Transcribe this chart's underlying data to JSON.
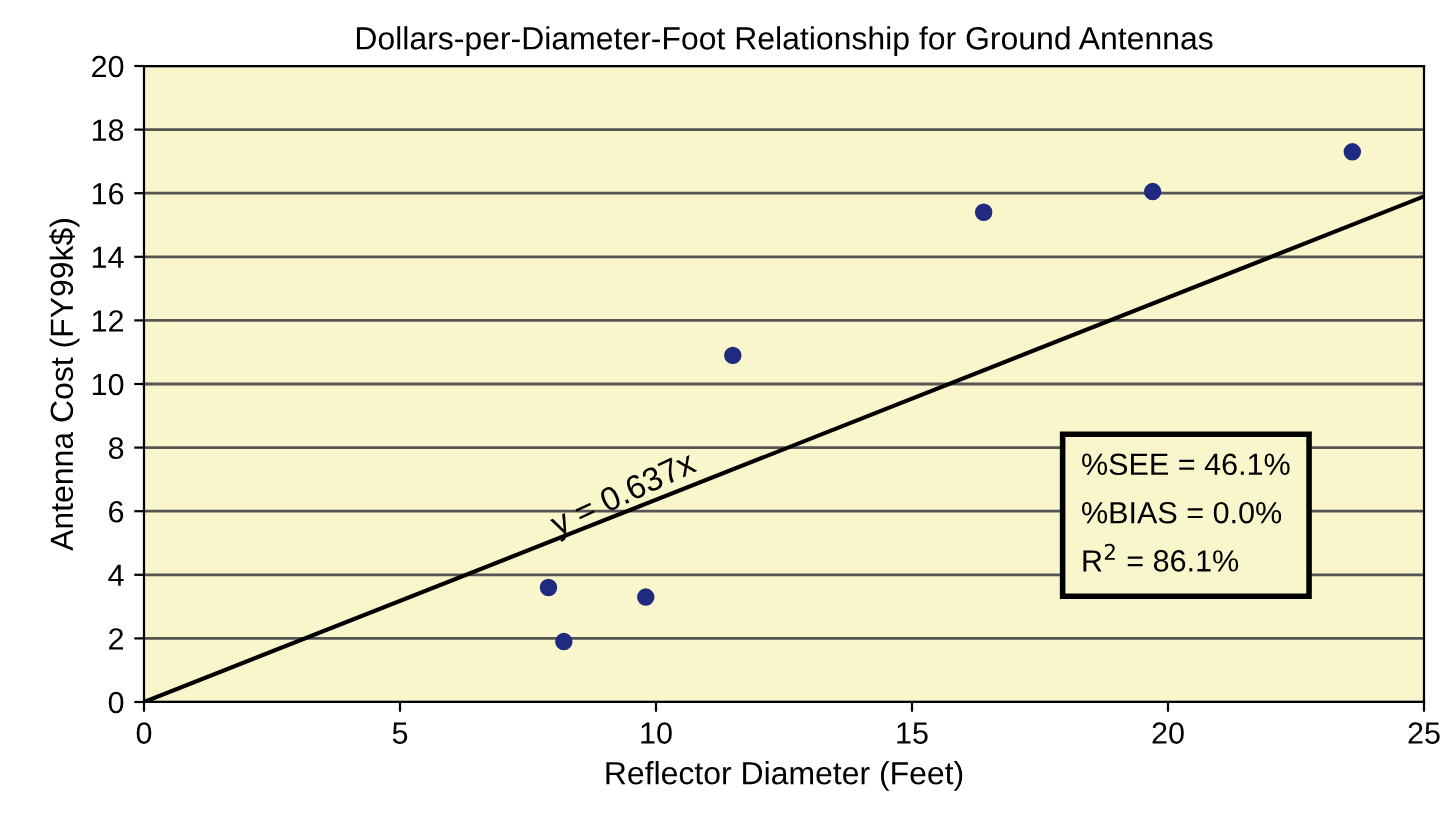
{
  "chart_data": {
    "type": "scatter",
    "title": "Dollars-per-Diameter-Foot Relationship for Ground Antennas",
    "xlabel": "Reflector Diameter (Feet)",
    "ylabel": "Antenna Cost (FY99k$)",
    "xlim": [
      0,
      25
    ],
    "xticks": [
      0,
      5,
      10,
      15,
      20,
      25
    ],
    "ylim": [
      0,
      20
    ],
    "yticks": [
      0,
      2,
      4,
      6,
      8,
      10,
      12,
      14,
      16,
      18,
      20
    ],
    "grid": "y",
    "series": [
      {
        "marker": "circle",
        "color": "#1f2a80",
        "x": [
          7.9,
          8.2,
          9.8,
          11.5,
          16.4,
          19.7,
          23.6
        ],
        "values": [
          3.6,
          1.9,
          3.3,
          10.9,
          15.4,
          16.05,
          17.3
        ]
      },
      {
        "type": "line",
        "marker": "none",
        "color": "#000000",
        "x": [
          0,
          25
        ],
        "values": [
          0,
          15.9
        ]
      }
    ],
    "annotations": [
      {
        "text": "y = 0.637x",
        "x": 9.5,
        "y": 6.05
      },
      "%SEE = 46.1%",
      "%BIAS = 0.0%",
      "R$^{2}$ = 86.1%"
    ]
  }
}
